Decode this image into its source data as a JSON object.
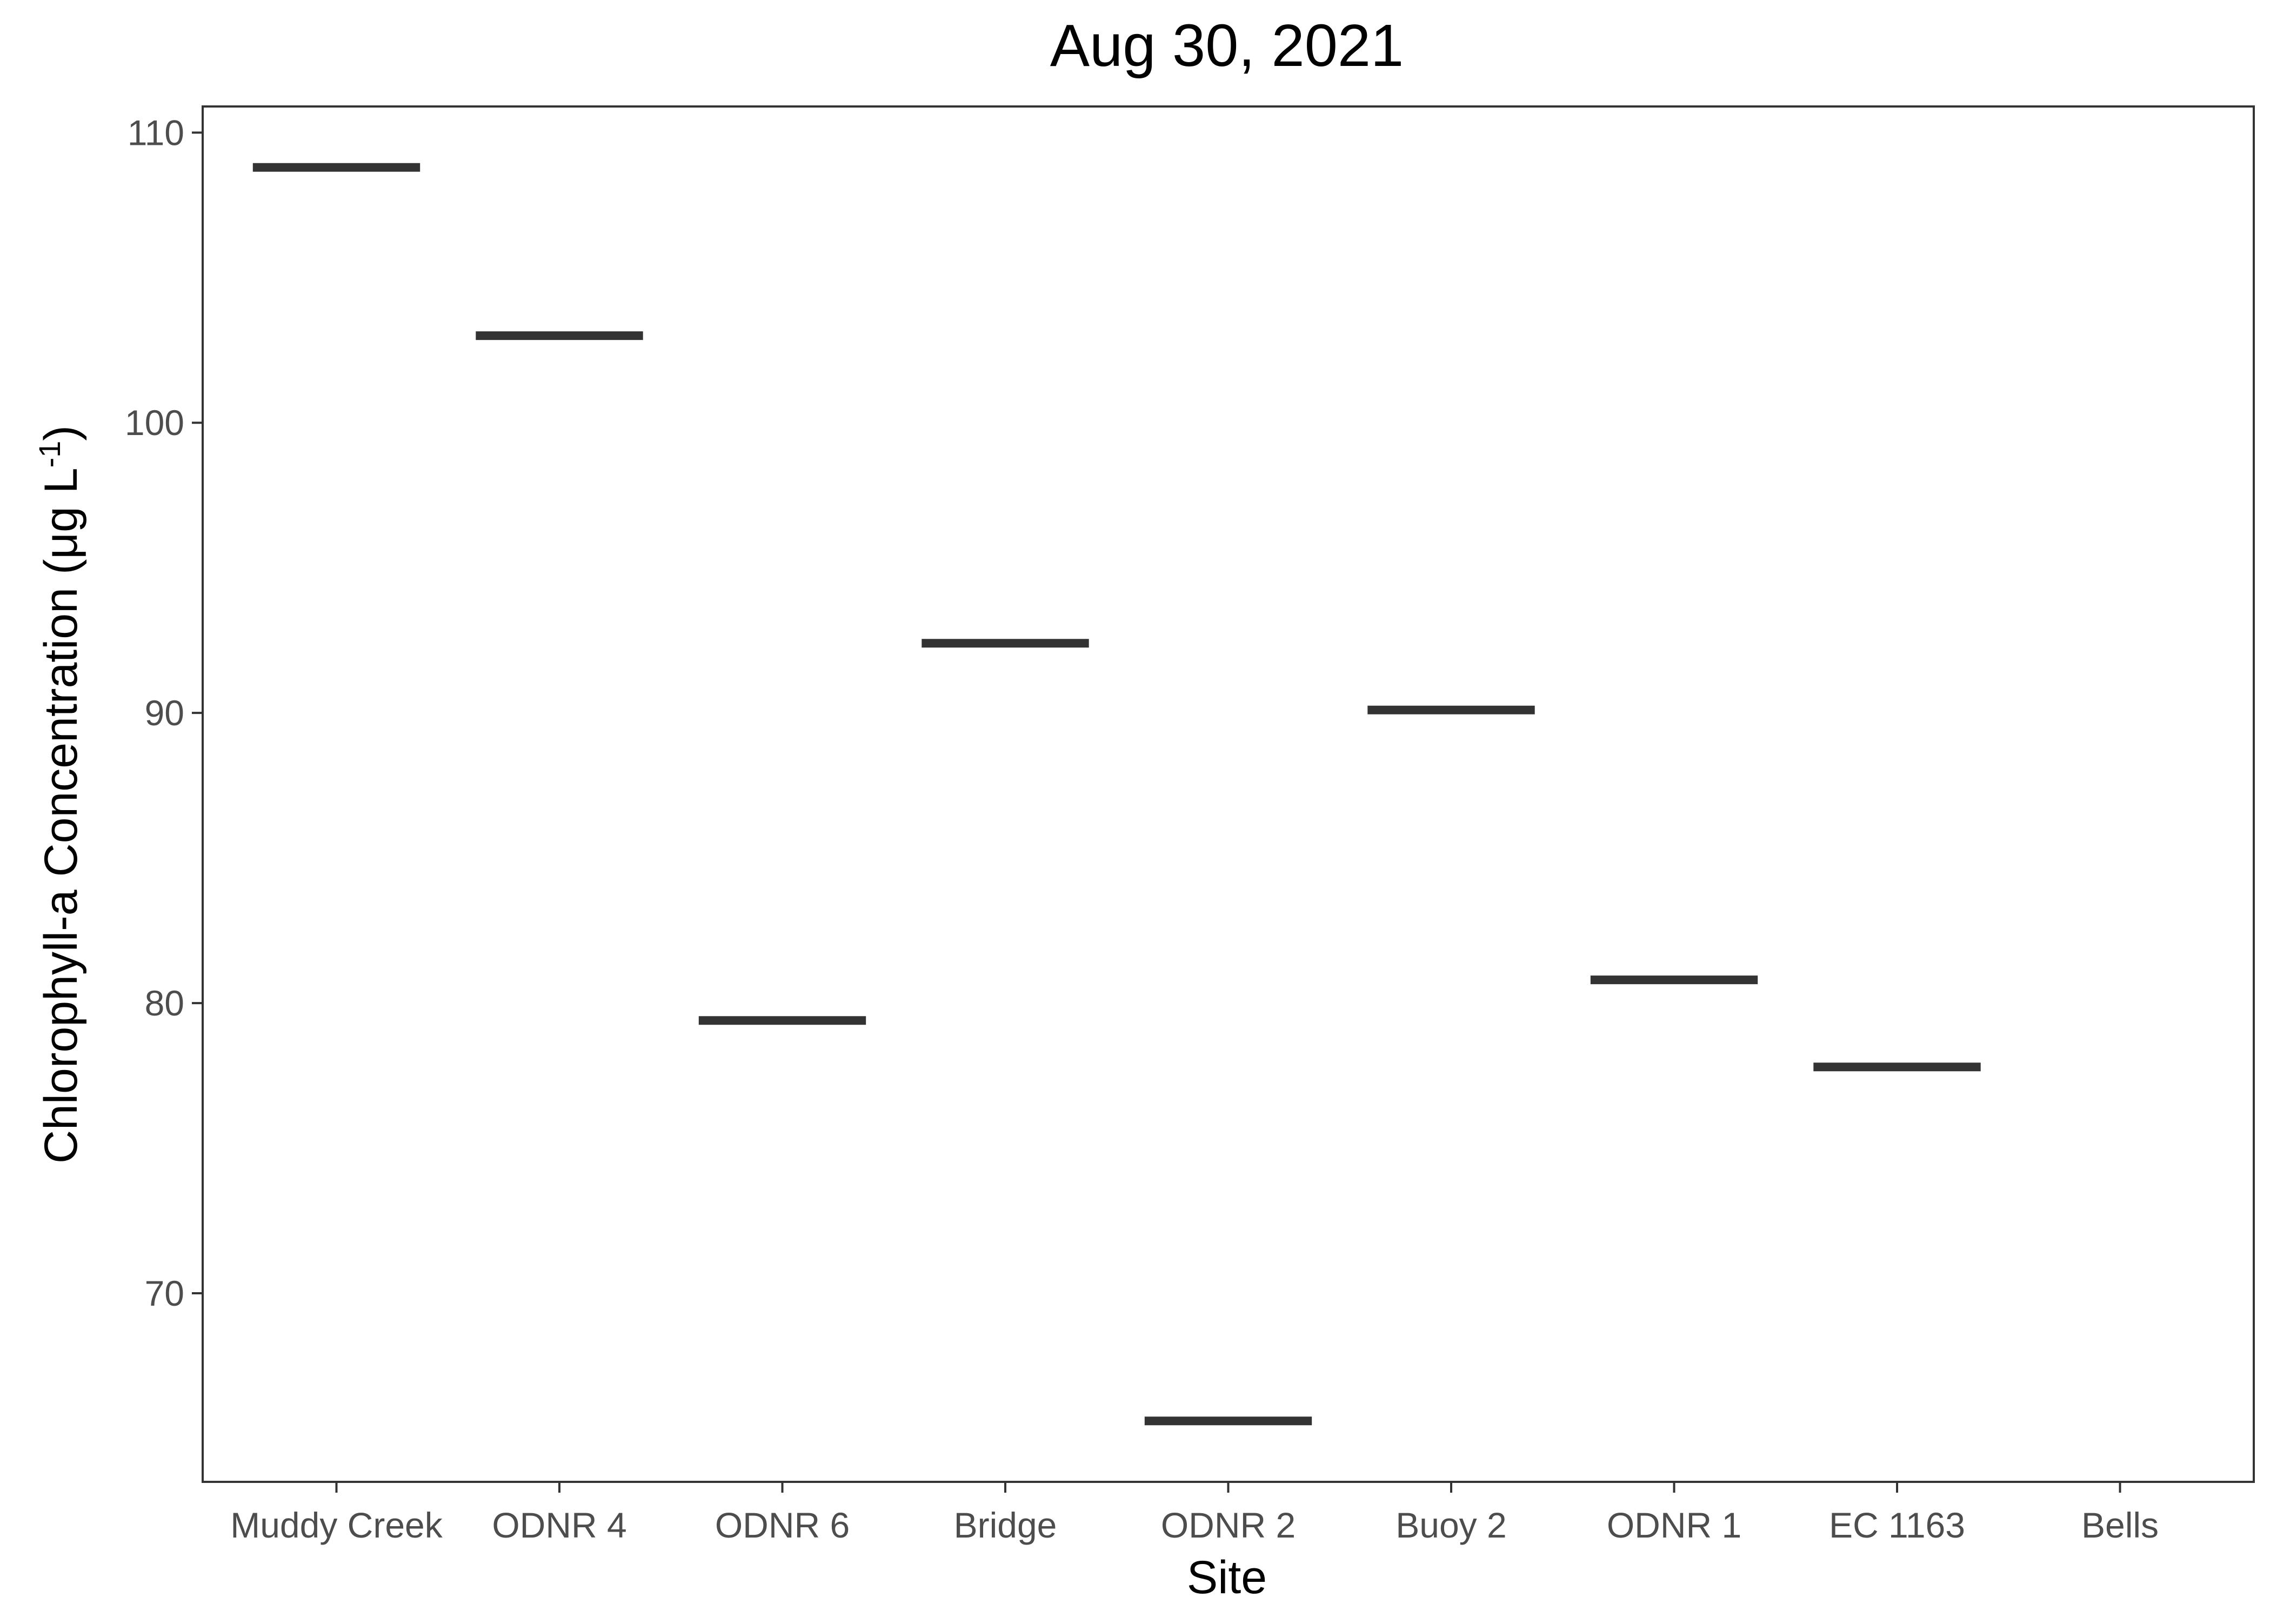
{
  "chart_data": {
    "type": "bar",
    "mark": "horizontal crossbar (median line only)",
    "title": "Aug 30, 2021",
    "xlabel": "Site",
    "ylabel_main": "Chlorophyll-a Concentration (",
    "ylabel_unit": "μg L",
    "ylabel_exponent": "-1",
    "ylabel_close": ")",
    "categories": [
      "Muddy Creek",
      "ODNR 4",
      "ODNR 6",
      "Bridge",
      "ODNR 2",
      "Buoy 2",
      "ODNR 1",
      "EC 1163",
      "Bells"
    ],
    "values": [
      108.8,
      103.0,
      79.4,
      92.4,
      65.6,
      90.1,
      80.8,
      77.8,
      null
    ],
    "yticks": [
      70,
      80,
      90,
      100,
      110
    ],
    "ylim": [
      63.5,
      110.9
    ],
    "grid": false,
    "legend": "none",
    "colors": {
      "mark": "#333333",
      "axis": "#333333",
      "tick_label": "#4d4d4d",
      "background": "#ffffff"
    }
  }
}
